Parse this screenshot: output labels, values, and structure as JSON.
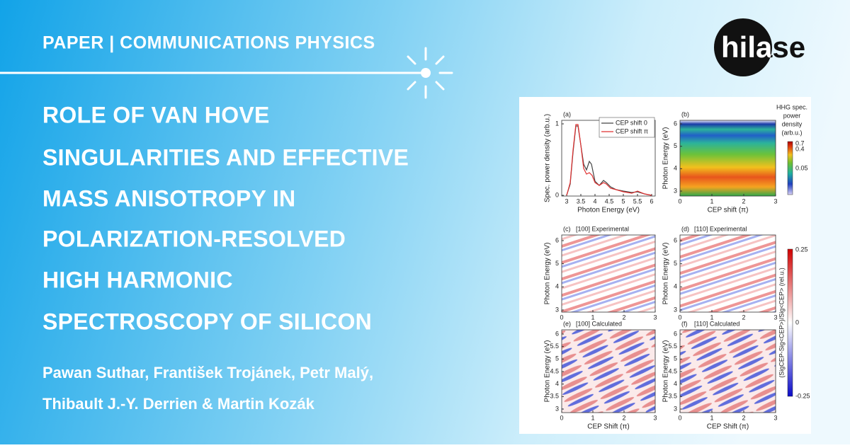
{
  "header": {
    "label": "PAPER | COMMUNICATIONS PHYSICS"
  },
  "title_lines": [
    "ROLE OF VAN HOVE",
    "SINGULARITIES AND EFFECTIVE",
    "MASS ANISOTROPY IN",
    "POLARIZATION-RESOLVED",
    "HIGH HARMONIC",
    "SPECTROSCOPY OF SILICON"
  ],
  "author_lines": [
    "Pawan Suthar, František Trojánek, Petr Malý,",
    "Thibault J.-Y. Derrien & Martin Kozák"
  ],
  "logo": "hilase",
  "figure": {
    "panels": [
      {
        "label": "(a)",
        "xlabel": "Photon Energy (eV)",
        "ylabel": "Spec. power density (arb.u.)",
        "xticks": [
          "3",
          "3.5",
          "4",
          "4.5",
          "5",
          "5.5",
          "6"
        ],
        "yticks": [
          "0",
          "1"
        ]
      },
      {
        "label": "(b)",
        "xlabel": "CEP shift (π)",
        "ylabel": "Photon Energy (eV)",
        "xticks": [
          "0",
          "1",
          "2",
          "3"
        ],
        "yticks": [
          "3",
          "4",
          "5",
          "6"
        ]
      },
      {
        "label": "(c)",
        "title": "[100] Experimental",
        "ylabel": "Photon Energy (eV)",
        "xticks": [
          "0",
          "1",
          "2",
          "3"
        ],
        "yticks": [
          "3",
          "4",
          "5",
          "6"
        ]
      },
      {
        "label": "(d)",
        "title": "[110] Experimental",
        "ylabel": "Photon Energy (eV)",
        "xticks": [
          "0",
          "1",
          "2",
          "3"
        ],
        "yticks": [
          "3",
          "4",
          "5",
          "6"
        ]
      },
      {
        "label": "(e)",
        "title": "[100] Calculated",
        "xlabel": "CEP Shift (π)",
        "ylabel": "Photon Energy (eV)",
        "xticks": [
          "0",
          "1",
          "2",
          "3"
        ],
        "yticks": [
          "3",
          "3.5",
          "4",
          "4.5",
          "5",
          "5.5",
          "6"
        ]
      },
      {
        "label": "(f)",
        "title": "[110] Calculated",
        "xlabel": "CEP Shift (π)",
        "ylabel": "Photon Energy (eV)",
        "xticks": [
          "0",
          "1",
          "2",
          "3"
        ],
        "yticks": [
          "3",
          "3.5",
          "4",
          "4.5",
          "5",
          "5.5",
          "6"
        ]
      }
    ],
    "legend": [
      "CEP shift 0",
      "CEP shift π"
    ],
    "colorbars": [
      {
        "title_lines": [
          "HHG spec.",
          "power",
          "density",
          "(arb.u.)"
        ],
        "ticks": [
          "0.7",
          "0.4",
          "0.05"
        ]
      },
      {
        "label": "(SigCEP-Sig<CEP>)/Sig<CEP> (rel.u.)",
        "ticks": [
          "0.25",
          "0",
          "-0.25"
        ]
      }
    ]
  }
}
